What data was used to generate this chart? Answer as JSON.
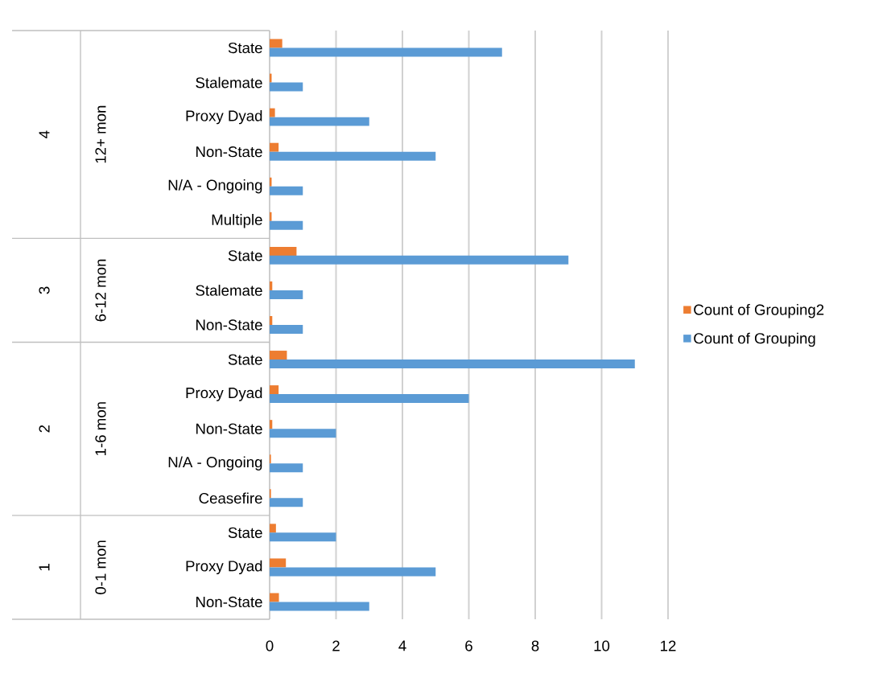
{
  "chart_data": {
    "type": "bar",
    "orientation": "horizontal",
    "categories": [
      "State",
      "Stalemate",
      "Proxy Dyad",
      "Non-State",
      "N/A - Ongoing",
      "Multiple",
      "State",
      "Stalemate",
      "Non-State",
      "State",
      "Proxy Dyad",
      "Non-State",
      "N/A - Ongoing",
      "Ceasefire",
      "State",
      "Proxy Dyad",
      "Non-State"
    ],
    "series": [
      {
        "name": "Count of Grouping2",
        "color": "#ed7d31",
        "values": [
          0.38,
          0.06,
          0.16,
          0.27,
          0.06,
          0.06,
          0.81,
          0.08,
          0.08,
          0.52,
          0.27,
          0.08,
          0.04,
          0.04,
          0.19,
          0.49,
          0.28
        ]
      },
      {
        "name": "Count of Grouping",
        "color": "#5b9bd5",
        "values": [
          7,
          1,
          3,
          5,
          1,
          1,
          9,
          1,
          1,
          11,
          6,
          2,
          1,
          1,
          2,
          5,
          3
        ]
      }
    ],
    "xlim": [
      0,
      12
    ],
    "xticks": [
      0,
      2,
      4,
      6,
      8,
      10,
      12
    ],
    "grid": "x",
    "legend": "right",
    "annotations": [
      "4",
      "12+ mon",
      "3",
      "6-12 mon",
      "2",
      "1-6 mon",
      "1",
      "0-1 mon"
    ]
  }
}
